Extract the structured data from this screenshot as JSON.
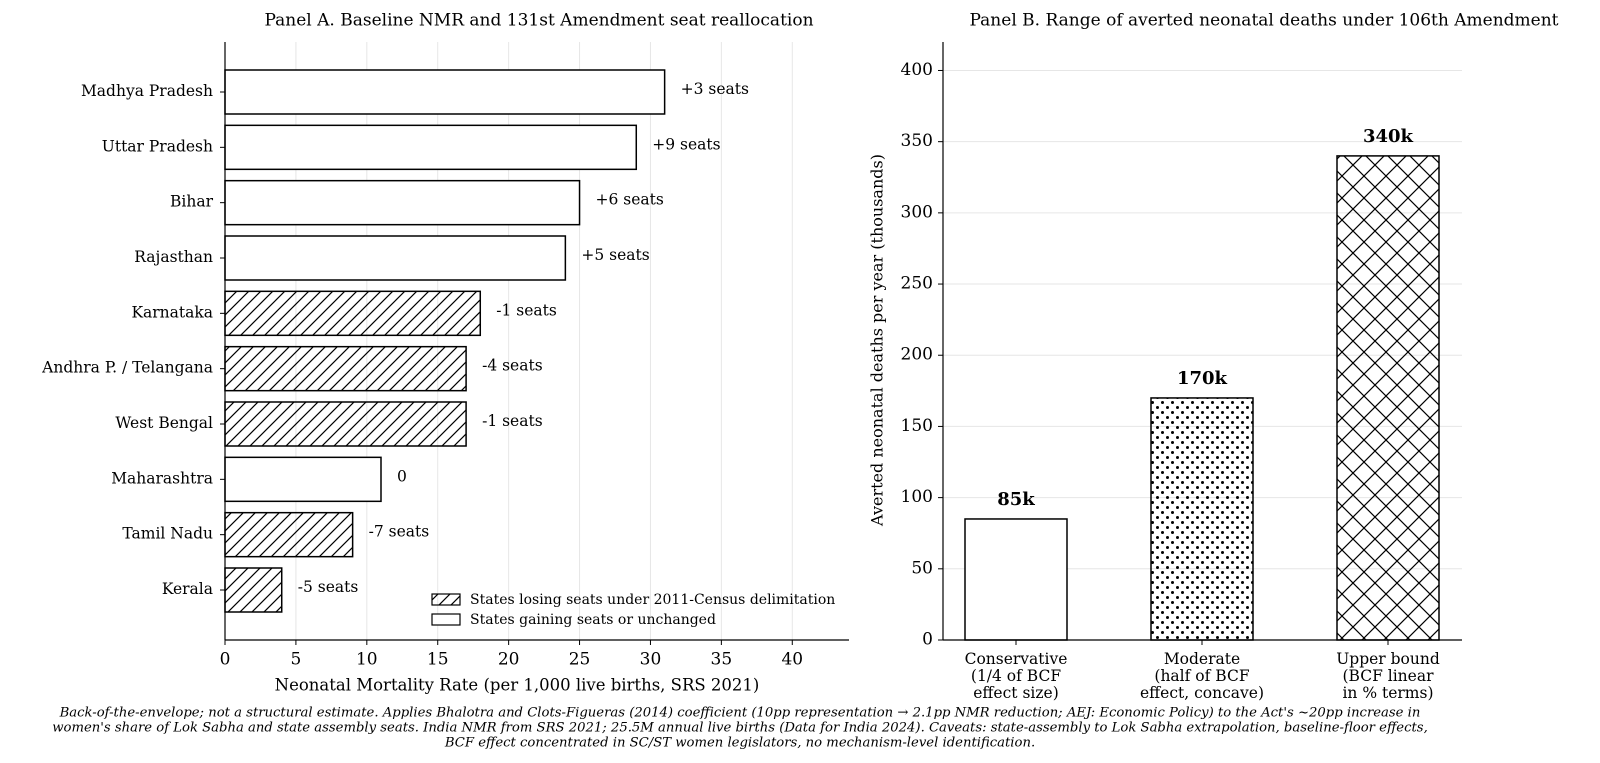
{
  "chart_data": [
    {
      "type": "barh",
      "title": "Panel A. Baseline NMR and 131st Amendment seat reallocation",
      "xlabel": "Neonatal Mortality Rate (per 1,000 live births, SRS 2021)",
      "categories": [
        "Madhya Pradesh",
        "Uttar Pradesh",
        "Bihar",
        "Rajasthan",
        "Karnataka",
        "Andhra P. / Telangana",
        "West Bengal",
        "Maharashtra",
        "Tamil Nadu",
        "Kerala"
      ],
      "values": [
        31,
        29,
        25,
        24,
        18,
        17,
        17,
        11,
        9,
        4
      ],
      "bar_labels": [
        "+3 seats",
        "+9 seats",
        "+6 seats",
        "+5 seats",
        "-1 seats",
        "-4 seats",
        "-1 seats",
        "0",
        "-7 seats",
        "-5 seats"
      ],
      "bar_group": [
        1,
        1,
        1,
        1,
        0,
        0,
        0,
        1,
        0,
        0
      ],
      "legend": [
        {
          "name": "States losing seats under 2011-Census delimitation",
          "pattern": "hatch"
        },
        {
          "name": "States gaining seats or unchanged",
          "pattern": "none"
        }
      ],
      "legend_position": "lower right",
      "xlim": [
        0,
        44
      ],
      "xticks": [
        0,
        5,
        10,
        15,
        20,
        25,
        30,
        35,
        40
      ],
      "grid": true
    },
    {
      "type": "bar",
      "title": "Panel B. Range of averted neonatal deaths under 106th Amendment",
      "ylabel": "Averted neonatal deaths per year (thousands)",
      "categories": [
        [
          "Conservative",
          "(1/4 of BCF",
          "effect size)"
        ],
        [
          "Moderate",
          "(half of BCF",
          "effect, concave)"
        ],
        [
          "Upper bound",
          "(BCF linear",
          "in % terms)"
        ]
      ],
      "values": [
        85,
        170,
        340
      ],
      "value_labels": [
        "85k",
        "170k",
        "340k"
      ],
      "patterns": [
        "none",
        "dots",
        "crosshatch"
      ],
      "ylim": [
        0,
        420
      ],
      "yticks": [
        0,
        50,
        100,
        150,
        200,
        250,
        300,
        350,
        400
      ],
      "grid": true
    }
  ],
  "footnote": [
    "Back-of-the-envelope; not a structural estimate. Applies Bhalotra and Clots-Figueras (2014) coefficient (10pp representation → 2.1pp NMR reduction; AEJ: Economic Policy) to the Act's ~20pp increase in",
    "women's share of Lok Sabha and state assembly seats. India NMR from SRS 2021; 25.5M annual live births (Data for India 2024). Caveats: state-assembly to Lok Sabha extrapolation, baseline-floor effects,",
    "BCF effect concentrated in SC/ST women legislators, no mechanism-level identification."
  ]
}
